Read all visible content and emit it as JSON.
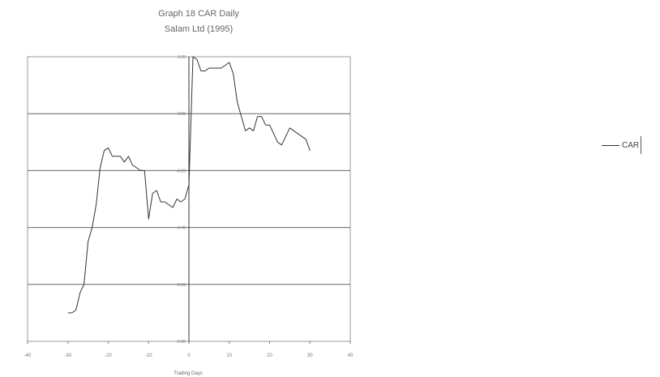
{
  "chart_data": {
    "type": "line",
    "title": "Graph 18 CAR Daily",
    "subtitle": "Salam Ltd (1995)",
    "xlabel": "Trading Days",
    "ylabel": "",
    "xlim": [
      -40,
      40
    ],
    "ylim": [
      -0.8,
      0.2
    ],
    "x_ticks": [
      -40,
      -30,
      -20,
      -10,
      0,
      10,
      20,
      30,
      40
    ],
    "y_ticks": [
      -0.8,
      -0.6,
      -0.4,
      -0.2,
      0.0,
      0.2
    ],
    "grid": true,
    "legend": "right",
    "series": [
      {
        "name": "CAR",
        "color": "#333333",
        "x": [
          -30,
          -29,
          -28,
          -27,
          -26,
          -25,
          -24,
          -23,
          -22,
          -21,
          -20,
          -19,
          -18,
          -17,
          -16,
          -15,
          -14,
          -13,
          -12,
          -11,
          -10,
          -9,
          -8,
          -7,
          -6,
          -5,
          -4,
          -3,
          -2,
          -1,
          0,
          1,
          2,
          3,
          4,
          5,
          6,
          7,
          8,
          9,
          10,
          11,
          12,
          13,
          14,
          15,
          16,
          17,
          18,
          19,
          20,
          21,
          22,
          23,
          24,
          25,
          26,
          27,
          28,
          29,
          30
        ],
        "values": [
          -0.7,
          -0.7,
          -0.69,
          -0.63,
          -0.6,
          -0.45,
          -0.4,
          -0.32,
          -0.19,
          -0.13,
          -0.12,
          -0.15,
          -0.15,
          -0.15,
          -0.17,
          -0.15,
          -0.18,
          -0.19,
          -0.2,
          -0.2,
          -0.37,
          -0.28,
          -0.27,
          -0.31,
          -0.31,
          -0.32,
          -0.33,
          -0.3,
          -0.31,
          -0.3,
          -0.25,
          0.2,
          0.19,
          0.15,
          0.15,
          0.16,
          0.16,
          0.16,
          0.16,
          0.17,
          0.18,
          0.14,
          0.04,
          -0.01,
          -0.06,
          -0.05,
          -0.06,
          -0.01,
          -0.01,
          -0.04,
          -0.04,
          -0.07,
          -0.1,
          -0.11,
          -0.08,
          -0.05,
          -0.06,
          -0.07,
          -0.08,
          -0.09,
          -0.13
        ]
      }
    ]
  }
}
